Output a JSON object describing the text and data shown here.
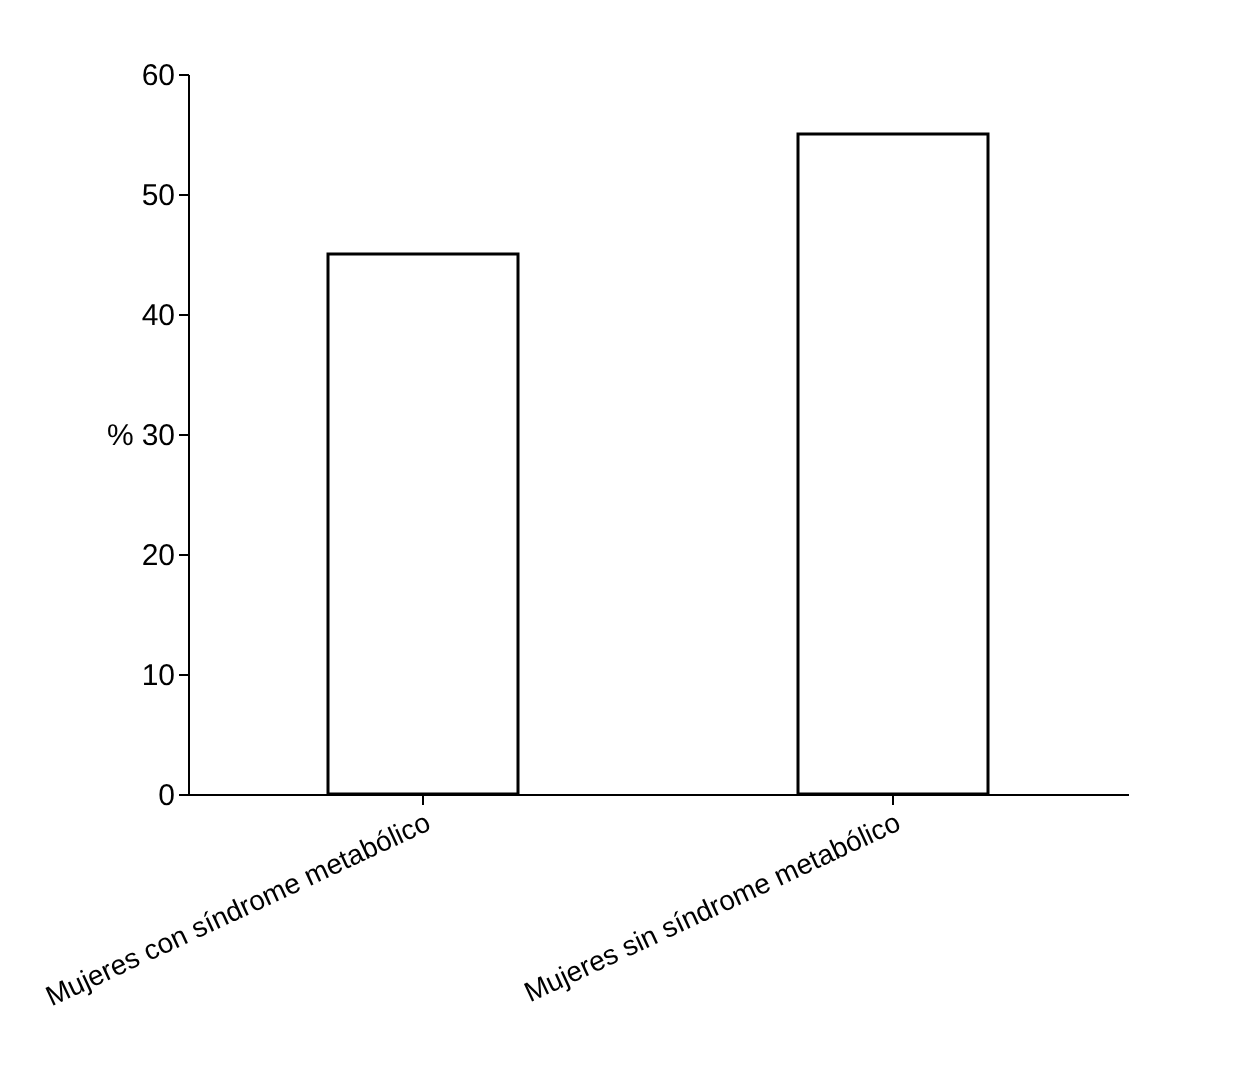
{
  "chart_data": {
    "type": "bar",
    "ylabel": "%",
    "categories": [
      "Mujeres con síndrome metabólico",
      "Mujeres sin síndrome metabólico"
    ],
    "values": [
      45,
      55
    ],
    "color": "#ffffff",
    "ylim": [
      0,
      60
    ],
    "yticks": [
      0,
      10,
      20,
      30,
      40,
      50,
      60
    ],
    "grid": false
  }
}
